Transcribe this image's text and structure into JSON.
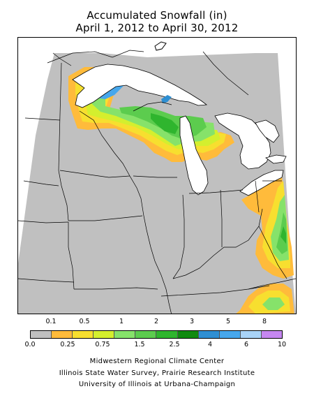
{
  "title": {
    "line1": "Accumulated Snowfall (in)",
    "line2": "April 1, 2012 to April 30, 2012"
  },
  "legend": {
    "top_labels": [
      "0.1",
      "0.5",
      "1",
      "2",
      "3",
      "5",
      "8"
    ],
    "bottom_labels": [
      "0.0",
      "0.25",
      "0.75",
      "1.5",
      "2.5",
      "4",
      "6",
      "10"
    ],
    "colors": [
      "#c0c0c0",
      "#ffbb3b",
      "#f7df2f",
      "#d4ef2e",
      "#86e26a",
      "#5ccc4e",
      "#2fb52e",
      "#108a10",
      "#2f8fd2",
      "#46a7ec",
      "#a9d3f7",
      "#c587f0"
    ]
  },
  "map": {
    "background": "#c0c0c0",
    "lake_color": "#ffffff",
    "boundary_color": "#000000"
  },
  "credits": {
    "line1": "Midwestern Regional Climate Center",
    "line2": "Illinois State Water Survey, Prairie Research Institute",
    "line3": "University of Illinois at Urbana-Champaign"
  }
}
